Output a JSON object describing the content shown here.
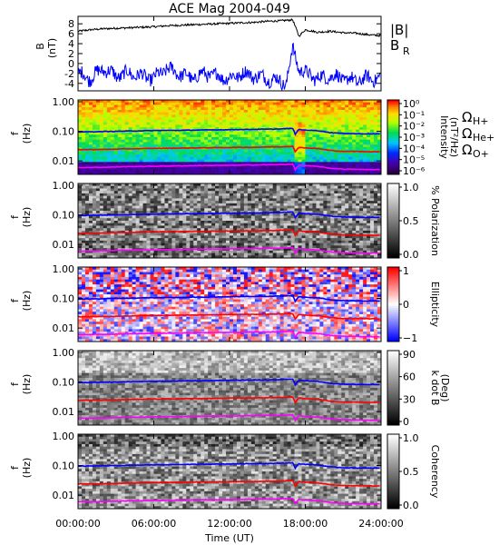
{
  "title": "ACE Mag 2004-049",
  "x_axis": {
    "label": "Time (UT)",
    "ticks": [
      "00:00:00",
      "06:00:00",
      "12:00:00",
      "18:00:00",
      "24:00:00"
    ],
    "tick_hours": [
      0,
      6,
      12,
      18,
      24
    ],
    "range_hours": [
      0,
      24
    ]
  },
  "colors": {
    "B_total": "#000000",
    "B_R": "#0000ff",
    "H_plus": "#0000ff",
    "He_plus": "#ff0000",
    "O_plus": "#ff00ff"
  },
  "ion_labels": [
    {
      "symbol": "Ω",
      "sub": "H+",
      "color": "#0000ff"
    },
    {
      "symbol": "Ω",
      "sub": "He+",
      "color": "#ff0000"
    },
    {
      "symbol": "Ω",
      "sub": "O+",
      "color": "#ff00ff"
    }
  ],
  "chart_data": [
    {
      "type": "line",
      "panel": "field",
      "ylabel": "B",
      "yunit": "(nT)",
      "ylim": [
        -5.5,
        9.5
      ],
      "yticks": [
        "8",
        "6",
        "4",
        "2",
        "0",
        "-2",
        "-4"
      ],
      "ytick_values": [
        8,
        6,
        4,
        2,
        0,
        -2,
        -4
      ],
      "legend": [
        "|B|",
        "B"
      ],
      "legend_sub": [
        "",
        "R"
      ],
      "series": [
        {
          "name": "|B|",
          "color": "#000000",
          "x": [
            0,
            1,
            2,
            3,
            4,
            5,
            6,
            7,
            8,
            9,
            10,
            11,
            12,
            13,
            14,
            15,
            16,
            17,
            17.5,
            18,
            19,
            20,
            21,
            22,
            23,
            24
          ],
          "y": [
            6.5,
            6.8,
            7.0,
            7.1,
            7.2,
            7.3,
            7.4,
            7.6,
            7.7,
            7.8,
            7.9,
            8.0,
            8.1,
            8.2,
            8.3,
            8.5,
            8.6,
            8.8,
            5.5,
            6.8,
            6.3,
            6.5,
            6.2,
            6.1,
            5.8,
            5.6
          ]
        },
        {
          "name": "B_R",
          "color": "#0000ff",
          "x": [
            0,
            1,
            2,
            3,
            4,
            5,
            6,
            7,
            8,
            9,
            10,
            11,
            12,
            13,
            14,
            15,
            16,
            16.5,
            17,
            17.5,
            18,
            19,
            20,
            21,
            22,
            23,
            24
          ],
          "y": [
            -2,
            -3,
            -1,
            -2.5,
            -2,
            -2.5,
            -3,
            -1,
            -2,
            -3,
            -2,
            -2.5,
            -3,
            -2,
            -2.5,
            -3,
            -3.5,
            -4,
            3,
            -1,
            -2,
            -3,
            -2.5,
            -3,
            -3.5,
            -3,
            -3
          ]
        }
      ]
    },
    {
      "type": "heatmap",
      "panel": "power",
      "ylabel": "f",
      "yunit": "(Hz)",
      "yscale": "log",
      "ylim": [
        0.0035,
        1.15
      ],
      "yticks": [
        "1.00",
        "0.10",
        "0.01"
      ],
      "ytick_values": [
        1,
        0.1,
        0.01
      ],
      "colorbar": {
        "label": "Intensity",
        "unit": "(nT²/Hz)",
        "tick_labels": [
          "10⁰",
          "10⁻¹",
          "10⁻²",
          "10⁻³",
          "10⁻⁴",
          "10⁻⁵",
          "10⁻⁶"
        ],
        "range_log10": [
          -6,
          0
        ],
        "colormap": "rainbow"
      },
      "lines": [
        "H+",
        "He+",
        "O+"
      ]
    },
    {
      "type": "heatmap",
      "panel": "polarization",
      "ylabel": "f",
      "yunit": "(Hz)",
      "yscale": "log",
      "ylim": [
        0.0035,
        1.15
      ],
      "yticks": [
        "1.00",
        "0.10",
        "0.01"
      ],
      "ytick_values": [
        1,
        0.1,
        0.01
      ],
      "colorbar": {
        "label": "% Polarization",
        "unit": "",
        "tick_labels": [
          "1.0",
          "0.5",
          "0.0"
        ],
        "range": [
          0,
          1
        ],
        "colormap": "gray"
      },
      "lines": [
        "H+",
        "He+",
        "O+"
      ]
    },
    {
      "type": "heatmap",
      "panel": "ellipticity",
      "ylabel": "f",
      "yunit": "(Hz)",
      "yscale": "log",
      "ylim": [
        0.0035,
        1.15
      ],
      "yticks": [
        "1.00",
        "0.10",
        "0.01"
      ],
      "ytick_values": [
        1,
        0.1,
        0.01
      ],
      "colorbar": {
        "label": "Ellipticity",
        "unit": "",
        "tick_labels": [
          "1",
          "0",
          "−1"
        ],
        "range": [
          -1,
          1
        ],
        "colormap": "bwr"
      },
      "lines": [
        "H+",
        "He+",
        "O+"
      ]
    },
    {
      "type": "heatmap",
      "panel": "kdotb",
      "ylabel": "f",
      "yunit": "(Hz)",
      "yscale": "log",
      "ylim": [
        0.0035,
        1.15
      ],
      "yticks": [
        "1.00",
        "0.10",
        "0.01"
      ],
      "ytick_values": [
        1,
        0.1,
        0.01
      ],
      "colorbar": {
        "label": "k dot B",
        "unit": "(Deg)",
        "tick_labels": [
          "90",
          "60",
          "30",
          "0"
        ],
        "range": [
          0,
          90
        ],
        "colormap": "gray"
      },
      "lines": [
        "H+",
        "He+",
        "O+"
      ]
    },
    {
      "type": "heatmap",
      "panel": "coherency",
      "ylabel": "f",
      "yunit": "(Hz)",
      "yscale": "log",
      "ylim": [
        0.0035,
        1.15
      ],
      "yticks": [
        "1.00",
        "0.10",
        "0.01"
      ],
      "ytick_values": [
        1,
        0.1,
        0.01
      ],
      "colorbar": {
        "label": "Coherency",
        "unit": "",
        "tick_labels": [
          "1.0",
          "0.5",
          "0.0"
        ],
        "range": [
          0,
          1
        ],
        "colormap": "gray"
      },
      "lines": [
        "H+",
        "He+",
        "O+"
      ]
    },
    {
      "type": "line",
      "panel": "gyrofrequencies",
      "x": [
        0,
        2,
        4,
        6,
        8,
        10,
        12,
        14,
        15,
        16,
        17,
        17.2,
        17.5,
        18,
        19,
        20,
        21,
        22,
        23,
        24
      ],
      "series": [
        {
          "name": "H+",
          "color": "#0000ff",
          "y": [
            0.095,
            0.098,
            0.102,
            0.106,
            0.108,
            0.111,
            0.114,
            0.117,
            0.118,
            0.12,
            0.125,
            0.08,
            0.115,
            0.11,
            0.105,
            0.09,
            0.085,
            0.083,
            0.082,
            0.082
          ]
        },
        {
          "name": "He+",
          "color": "#ff0000",
          "y": [
            0.024,
            0.0245,
            0.0255,
            0.0265,
            0.027,
            0.0278,
            0.0285,
            0.029,
            0.0295,
            0.03,
            0.031,
            0.02,
            0.029,
            0.0275,
            0.026,
            0.0225,
            0.021,
            0.021,
            0.0205,
            0.0205
          ]
        },
        {
          "name": "O+",
          "color": "#ff00ff",
          "y": [
            0.006,
            0.0061,
            0.0064,
            0.0066,
            0.0068,
            0.007,
            0.0071,
            0.0073,
            0.0074,
            0.0075,
            0.0078,
            0.005,
            0.0072,
            0.0069,
            0.0065,
            0.0056,
            0.0053,
            0.0052,
            0.0051,
            0.0051
          ]
        }
      ]
    }
  ]
}
